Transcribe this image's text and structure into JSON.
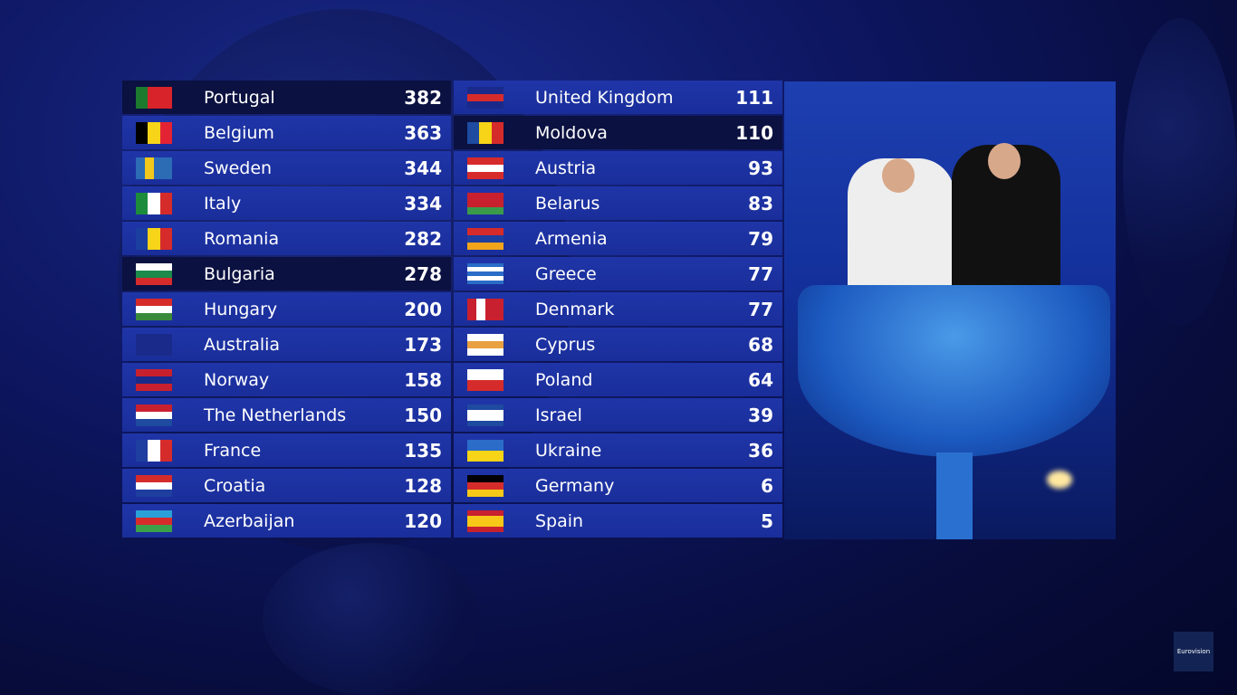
{
  "scoreboard": {
    "left": [
      {
        "country": "Portugal",
        "points": "382",
        "highlight": true,
        "flag": {
          "dir": "v",
          "colors": [
            "#1b7a2e",
            "#d8232a",
            "#d8232a"
          ]
        }
      },
      {
        "country": "Belgium",
        "points": "363",
        "flag": {
          "dir": "v",
          "colors": [
            "#000000",
            "#f7d417",
            "#e32333"
          ]
        }
      },
      {
        "country": "Sweden",
        "points": "344",
        "flag": {
          "dir": "v",
          "colors": [
            "#2b6cb5",
            "#f2c81b",
            "#2b6cb5",
            "#2b6cb5"
          ]
        }
      },
      {
        "country": "Italy",
        "points": "334",
        "flag": {
          "dir": "v",
          "colors": [
            "#1c8c3c",
            "#ffffff",
            "#d62b2b"
          ]
        }
      },
      {
        "country": "Romania",
        "points": "282",
        "flag": {
          "dir": "v",
          "colors": [
            "#1b3fa0",
            "#f7d417",
            "#d62b2b"
          ]
        }
      },
      {
        "country": "Bulgaria",
        "points": "278",
        "highlight": true,
        "flag": {
          "dir": "h",
          "colors": [
            "#ffffff",
            "#1b8a4a",
            "#d62b2b"
          ]
        }
      },
      {
        "country": "Hungary",
        "points": "200",
        "flag": {
          "dir": "h",
          "colors": [
            "#d62b2b",
            "#ffffff",
            "#3a8a3a"
          ]
        }
      },
      {
        "country": "Australia",
        "points": "173",
        "flag": {
          "dir": "h",
          "colors": [
            "#1a2a8a",
            "#1a2a8a"
          ]
        }
      },
      {
        "country": "Norway",
        "points": "158",
        "flag": {
          "dir": "h",
          "colors": [
            "#c8202e",
            "#1a2a8a",
            "#c8202e"
          ]
        }
      },
      {
        "country": "The Netherlands",
        "points": "150",
        "flag": {
          "dir": "h",
          "colors": [
            "#c8202e",
            "#ffffff",
            "#1e4aa0"
          ]
        }
      },
      {
        "country": "France",
        "points": "135",
        "flag": {
          "dir": "v",
          "colors": [
            "#1e3ea0",
            "#ffffff",
            "#d62b2b"
          ]
        }
      },
      {
        "country": "Croatia",
        "points": "128",
        "flag": {
          "dir": "h",
          "colors": [
            "#d62b2b",
            "#ffffff",
            "#1e3ea0"
          ]
        }
      },
      {
        "country": "Azerbaijan",
        "points": "120",
        "flag": {
          "dir": "h",
          "colors": [
            "#2aa0d8",
            "#d62b2b",
            "#3aa04a"
          ]
        }
      }
    ],
    "right": [
      {
        "country": "United Kingdom",
        "points": "111",
        "flag": {
          "dir": "h",
          "colors": [
            "#1a2a8a",
            "#d62b2b",
            "#1a2a8a"
          ]
        }
      },
      {
        "country": "Moldova",
        "points": "110",
        "highlight": true,
        "flag": {
          "dir": "v",
          "colors": [
            "#1e4aa0",
            "#f7d417",
            "#d62b2b"
          ]
        }
      },
      {
        "country": "Austria",
        "points": "93",
        "flag": {
          "dir": "h",
          "colors": [
            "#d62b2b",
            "#ffffff",
            "#d62b2b"
          ]
        }
      },
      {
        "country": "Belarus",
        "points": "83",
        "flag": {
          "dir": "h",
          "colors": [
            "#c8202e",
            "#c8202e",
            "#3a9a4a"
          ]
        }
      },
      {
        "country": "Armenia",
        "points": "79",
        "flag": {
          "dir": "h",
          "colors": [
            "#d62b2b",
            "#1e3ea0",
            "#f2a41b"
          ]
        }
      },
      {
        "country": "Greece",
        "points": "77",
        "flag": {
          "dir": "h",
          "colors": [
            "#2a6cc8",
            "#ffffff",
            "#2a6cc8",
            "#ffffff",
            "#2a6cc8"
          ]
        }
      },
      {
        "country": "Denmark",
        "points": "77",
        "flag": {
          "dir": "v",
          "colors": [
            "#c8202e",
            "#ffffff",
            "#c8202e",
            "#c8202e"
          ]
        }
      },
      {
        "country": "Cyprus",
        "points": "68",
        "flag": {
          "dir": "h",
          "colors": [
            "#ffffff",
            "#e8a040",
            "#ffffff"
          ]
        }
      },
      {
        "country": "Poland",
        "points": "64",
        "flag": {
          "dir": "h",
          "colors": [
            "#ffffff",
            "#d62b2b"
          ]
        }
      },
      {
        "country": "Israel",
        "points": "39",
        "flag": {
          "dir": "h",
          "colors": [
            "#1e4aa0",
            "#ffffff",
            "#ffffff",
            "#1e4aa0"
          ]
        }
      },
      {
        "country": "Ukraine",
        "points": "36",
        "flag": {
          "dir": "h",
          "colors": [
            "#2a6cc8",
            "#f7d417"
          ]
        }
      },
      {
        "country": "Germany",
        "points": "6",
        "flag": {
          "dir": "h",
          "colors": [
            "#000000",
            "#d62b2b",
            "#f7c817"
          ]
        }
      },
      {
        "country": "Spain",
        "points": "5",
        "flag": {
          "dir": "h",
          "colors": [
            "#c8202e",
            "#f7c817",
            "#f7c817",
            "#c8202e"
          ]
        }
      }
    ]
  },
  "logo": {
    "text": "Eurovision"
  }
}
